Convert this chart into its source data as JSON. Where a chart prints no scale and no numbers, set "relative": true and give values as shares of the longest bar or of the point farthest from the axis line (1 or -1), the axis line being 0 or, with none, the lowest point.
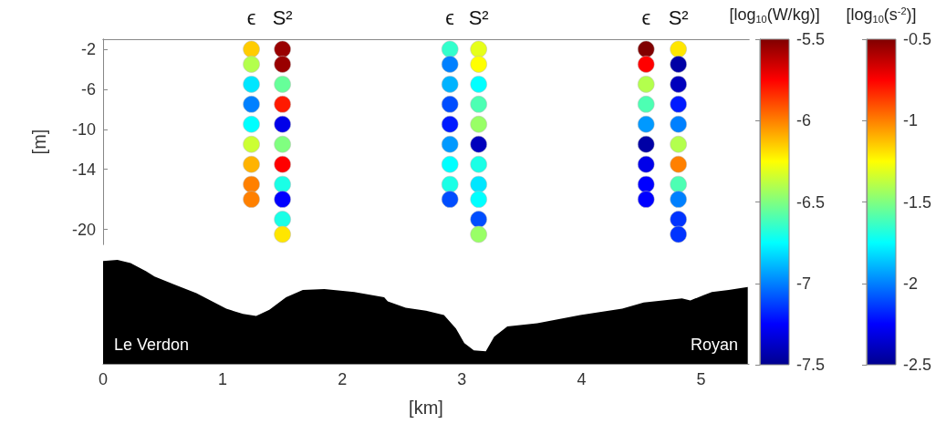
{
  "chart_data": [
    {
      "type": "scatter",
      "ylabel": "[m]",
      "xlim": [
        0,
        5.4
      ],
      "ylim": [
        -21.5,
        -1
      ],
      "yticks": [
        -2,
        -6,
        -10,
        -14,
        -20
      ],
      "tick_labels": "y",
      "marker": "circle",
      "clabel": "[log$_{10}$(W/kg)]",
      "clim": [
        -7.5,
        -5.5
      ],
      "cticks": [
        -7.5,
        -7,
        -6.5,
        -6,
        -5.5
      ],
      "series": [
        {
          "name": "ϵ",
          "x": [
            1.24,
            1.24,
            1.24,
            1.24,
            1.24,
            1.24,
            1.24,
            1.24,
            1.24,
            2.9,
            2.9,
            2.9,
            2.9,
            2.9,
            2.9,
            2.9,
            2.9,
            2.9,
            4.54,
            4.54,
            4.54,
            4.54,
            4.54,
            4.54,
            4.54,
            4.54,
            4.54
          ],
          "values": [
            -2,
            -3.5,
            -5.5,
            -7.5,
            -9.5,
            -11.5,
            -13.5,
            -15.5,
            -17,
            -2,
            -3.5,
            -5.5,
            -7.5,
            -9.5,
            -11.5,
            -13.5,
            -15.5,
            -17,
            -2,
            -3.5,
            -5.5,
            -7.5,
            -9.5,
            -11.5,
            -13.5,
            -15.5,
            -17
          ],
          "cvalues": [
            -6.15,
            -6.4,
            -6.8,
            -7,
            -6.75,
            -6.35,
            -6.1,
            -6,
            -6,
            -6.65,
            -7,
            -6.9,
            -7.1,
            -7.2,
            -6.95,
            -6.75,
            -6.7,
            -7.1,
            -5.5,
            -5.75,
            -6.4,
            -6.6,
            -6.95,
            -7.45,
            -7.3,
            -7.25,
            -7.25
          ]
        }
      ]
    },
    {
      "type": "scatter",
      "xlim": [
        0,
        5.4
      ],
      "ylim": [
        -21.5,
        -1
      ],
      "tick_labels": false,
      "marker": "circle",
      "clabel": "[log$_{10}$(s$^{-2}$)]",
      "clim": [
        -2.5,
        -0.5
      ],
      "cticks": [
        -2.5,
        -2,
        -1.5,
        -1,
        -0.5
      ],
      "series": [
        {
          "name": "S²",
          "x": [
            1.5,
            1.5,
            1.5,
            1.5,
            1.5,
            1.5,
            1.5,
            1.5,
            1.5,
            1.5,
            1.5,
            3.14,
            3.14,
            3.14,
            3.14,
            3.14,
            3.14,
            3.14,
            3.14,
            3.14,
            3.14,
            3.14,
            4.81,
            4.81,
            4.81,
            4.81,
            4.81,
            4.81,
            4.81,
            4.81,
            4.81,
            4.81,
            4.81
          ],
          "values": [
            -2,
            -3.5,
            -5.5,
            -7.5,
            -9.5,
            -11.5,
            -13.5,
            -15.5,
            -17,
            -19,
            -20.5,
            -2,
            -3.5,
            -5.5,
            -7.5,
            -9.5,
            -11.5,
            -13.5,
            -15.5,
            -17,
            -19,
            -20.5,
            -2,
            -3.5,
            -5.5,
            -7.5,
            -9.5,
            -11.5,
            -13.5,
            -15.5,
            -17,
            -19,
            -20.5
          ],
          "cvalues": [
            -0.55,
            -0.55,
            -1.55,
            -0.8,
            -2.3,
            -1.5,
            -0.75,
            -1.7,
            -2.25,
            -1.7,
            -1.2,
            -1.3,
            -1.25,
            -1.75,
            -1.6,
            -1.45,
            -2.4,
            -1.7,
            -1.8,
            -1.75,
            -2.1,
            -1.45,
            -1.2,
            -2.45,
            -2.4,
            -2.2,
            -2,
            -1.4,
            -1,
            -1.6,
            -2,
            -2.15,
            -2.15
          ]
        }
      ]
    },
    {
      "type": "area",
      "relative": true,
      "xlabel": "[km]",
      "xlim": [
        0,
        5.4
      ],
      "xticks": [
        0,
        1,
        2,
        3,
        4,
        5
      ],
      "tick_labels": "x",
      "annotations": [
        "Le Verdon",
        "Royan"
      ],
      "series": [
        {
          "color": "#000000",
          "x": [
            0,
            0.12,
            0.23,
            0.36,
            0.43,
            0.6,
            0.78,
            1.03,
            1.17,
            1.28,
            1.39,
            1.53,
            1.67,
            1.85,
            2.1,
            2.35,
            2.38,
            2.53,
            2.7,
            2.85,
            2.95,
            3.02,
            3.1,
            3.2,
            3.27,
            3.38,
            3.63,
            3.99,
            4.34,
            4.52,
            4.84,
            4.91,
            5.02,
            5.09,
            5.23,
            5.39
          ],
          "values": [
            0.99,
            1,
            0.97,
            0.89,
            0.84,
            0.76,
            0.68,
            0.53,
            0.48,
            0.46,
            0.52,
            0.64,
            0.71,
            0.72,
            0.69,
            0.64,
            0.6,
            0.54,
            0.51,
            0.47,
            0.34,
            0.2,
            0.13,
            0.12,
            0.26,
            0.36,
            0.39,
            0.47,
            0.53,
            0.59,
            0.63,
            0.61,
            0.66,
            0.69,
            0.71,
            0.74
          ]
        }
      ]
    }
  ]
}
